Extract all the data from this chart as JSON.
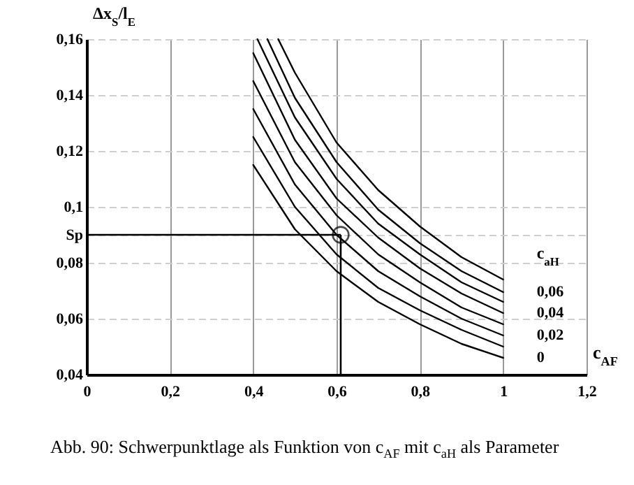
{
  "chart_data": {
    "type": "line",
    "xlabel": "c$_{AF}$",
    "ylabel": "Δx$_{S}$/l$_{E}$",
    "legend_title": "c$_{aH}$",
    "xlim": [
      0,
      1.2
    ],
    "ylim": [
      0.04,
      0.16
    ],
    "xticks": [
      0,
      {
        "value": 0.2,
        "label": "0,2"
      },
      {
        "value": 0.4,
        "label": "0,4"
      },
      {
        "value": 0.6,
        "label": "0,6"
      },
      {
        "value": 0.8,
        "label": "0,8"
      },
      1,
      {
        "value": 1.2,
        "label": "1,2"
      }
    ],
    "yticks": [
      {
        "value": 0.04,
        "label": "0,04"
      },
      {
        "value": 0.06,
        "label": "0,06"
      },
      {
        "value": 0.08,
        "label": "0,08"
      },
      {
        "value": 0.09,
        "label": "Sp"
      },
      {
        "value": 0.1,
        "label": "0,1"
      },
      {
        "value": 0.12,
        "label": "0,12"
      },
      {
        "value": 0.14,
        "label": "0,14"
      },
      {
        "value": 0.16,
        "label": "0,16"
      }
    ],
    "grid": true,
    "line_style": "solid",
    "series": [
      {
        "name": "0",
        "color": "#000000",
        "x": [
          0.4,
          0.5,
          0.6,
          0.7,
          0.8,
          0.9,
          1.0
        ],
        "values": [
          0.115,
          0.092,
          0.077,
          0.066,
          0.058,
          0.051,
          0.046
        ]
      },
      {
        "color": "#000000",
        "x": [
          0.4,
          0.5,
          0.6,
          0.7,
          0.8,
          0.9,
          1.0
        ],
        "values": [
          0.125,
          0.1,
          0.083,
          0.071,
          0.063,
          0.056,
          0.05
        ]
      },
      {
        "name": "0,02",
        "color": "#000000",
        "x": [
          0.4,
          0.5,
          0.6,
          0.7,
          0.8,
          0.9,
          1.0
        ],
        "values": [
          0.135,
          0.108,
          0.09,
          0.077,
          0.068,
          0.06,
          0.054
        ]
      },
      {
        "color": "#000000",
        "x": [
          0.4,
          0.5,
          0.6,
          0.7,
          0.8,
          0.9,
          1.0
        ],
        "values": [
          0.145,
          0.116,
          0.097,
          0.083,
          0.073,
          0.064,
          0.058
        ]
      },
      {
        "name": "0,04",
        "color": "#000000",
        "x": [
          0.4,
          0.5,
          0.6,
          0.7,
          0.8,
          0.9,
          1.0
        ],
        "values": [
          0.155,
          0.124,
          0.103,
          0.089,
          0.078,
          0.069,
          0.062
        ]
      },
      {
        "color": "#000000",
        "x": [
          0.41,
          0.5,
          0.6,
          0.7,
          0.8,
          0.9,
          1.0
        ],
        "values": [
          0.16,
          0.132,
          0.11,
          0.094,
          0.083,
          0.073,
          0.066
        ]
      },
      {
        "name": "0,06",
        "color": "#000000",
        "x": [
          0.434,
          0.5,
          0.6,
          0.7,
          0.8,
          0.9,
          1.0
        ],
        "values": [
          0.16,
          0.139,
          0.116,
          0.099,
          0.087,
          0.077,
          0.0695
        ]
      },
      {
        "color": "#000000",
        "x": [
          0.46,
          0.5,
          0.6,
          0.7,
          0.8,
          0.9,
          1.0
        ],
        "values": [
          0.16,
          0.148,
          0.123,
          0.106,
          0.093,
          0.082,
          0.074
        ]
      },
      {
        "type": "scatter",
        "marker": "circle",
        "color": "#000000",
        "x": [
          0.61
        ],
        "values": [
          0.09
        ]
      }
    ],
    "ref_lines": [
      {
        "axis": "y",
        "value": 0.09,
        "color": "#000000"
      },
      {
        "axis": "x",
        "value": 0.61,
        "color": "#000000"
      }
    ],
    "annotations": [
      "Abb. 90: Schwerpunktlage als Funktion von c$_{AF}$ mit c$_{aH}$ als Parameter"
    ]
  }
}
